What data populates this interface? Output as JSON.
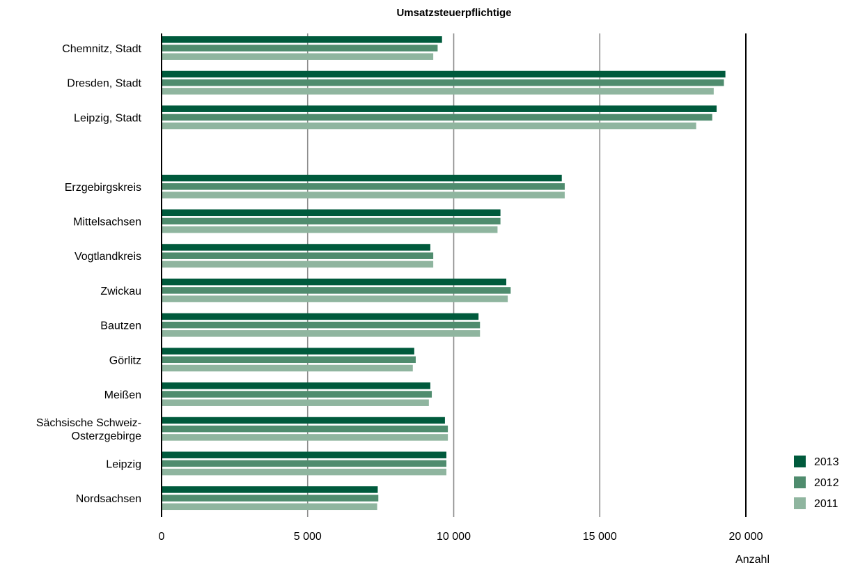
{
  "chart_data": {
    "type": "bar",
    "orientation": "horizontal",
    "title": "Umsatzsteuerpflichtige",
    "xlabel": "Anzahl",
    "ylabel": "",
    "xlim": [
      0,
      20000
    ],
    "xticks": [
      0,
      5000,
      10000,
      15000,
      20000
    ],
    "xtick_labels": [
      "0",
      "5 000",
      "10 000",
      "15 000",
      "20 000"
    ],
    "grid": true,
    "legend_position": "bottom-right",
    "categories": [
      "Chemnitz, Stadt",
      "Dresden, Stadt",
      "Leipzig, Stadt",
      "",
      "Erzgebirgskreis",
      "Mittelsachsen",
      "Vogtlandkreis",
      "Zwickau",
      "Bautzen",
      "Görlitz",
      "Meißen",
      "Sächsische Schweiz-\nOsterzgebirge",
      "Leipzig",
      "Nordsachsen"
    ],
    "series": [
      {
        "name": "2013",
        "color": "#005a3c",
        "values": [
          9600,
          19300,
          19000,
          null,
          13700,
          11600,
          9200,
          11800,
          10850,
          8650,
          9200,
          9700,
          9750,
          7400
        ]
      },
      {
        "name": "2012",
        "color": "#4f8c6e",
        "values": [
          9450,
          19250,
          18850,
          null,
          13800,
          11600,
          9300,
          11950,
          10900,
          8700,
          9250,
          9800,
          9750,
          7420
        ]
      },
      {
        "name": "2011",
        "color": "#8fb59f",
        "values": [
          9300,
          18900,
          18300,
          null,
          13800,
          11500,
          9300,
          11850,
          10900,
          8600,
          9150,
          9800,
          9750,
          7380
        ]
      }
    ]
  }
}
